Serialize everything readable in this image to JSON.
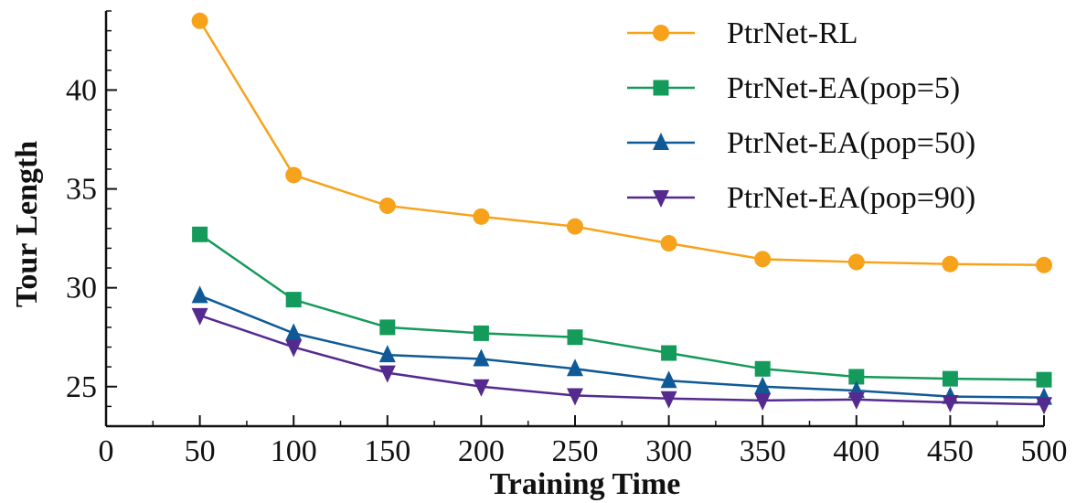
{
  "chart_data": {
    "type": "line",
    "xlabel": "Training Time",
    "ylabel": "Tour Length",
    "xlim": [
      0,
      500
    ],
    "ylim": [
      23,
      44
    ],
    "x_ticks": [
      0,
      50,
      100,
      150,
      200,
      250,
      300,
      350,
      400,
      450,
      500
    ],
    "y_ticks": [
      25,
      30,
      35,
      40
    ],
    "grid": false,
    "legend_position": "top-right",
    "x": [
      50,
      100,
      150,
      200,
      250,
      300,
      350,
      400,
      450,
      500
    ],
    "series": [
      {
        "name": "PtrNet-RL",
        "marker": "circle",
        "color": "#f7a21b",
        "values": [
          43.5,
          35.7,
          34.15,
          33.6,
          33.1,
          32.25,
          31.45,
          31.3,
          31.2,
          31.15
        ]
      },
      {
        "name": "PtrNet-EA(pop=5)",
        "marker": "square",
        "color": "#149a5a",
        "values": [
          32.7,
          29.4,
          28.0,
          27.7,
          27.5,
          26.7,
          25.9,
          25.5,
          25.4,
          25.35
        ]
      },
      {
        "name": "PtrNet-EA(pop=50)",
        "marker": "triangle-up",
        "color": "#0f5a96",
        "values": [
          29.6,
          27.7,
          26.6,
          26.4,
          25.9,
          25.3,
          25.0,
          24.8,
          24.5,
          24.45
        ]
      },
      {
        "name": "PtrNet-EA(pop=90)",
        "marker": "triangle-down",
        "color": "#542a8f",
        "values": [
          28.6,
          27.0,
          25.7,
          25.0,
          24.55,
          24.4,
          24.3,
          24.35,
          24.2,
          24.1
        ]
      }
    ]
  }
}
